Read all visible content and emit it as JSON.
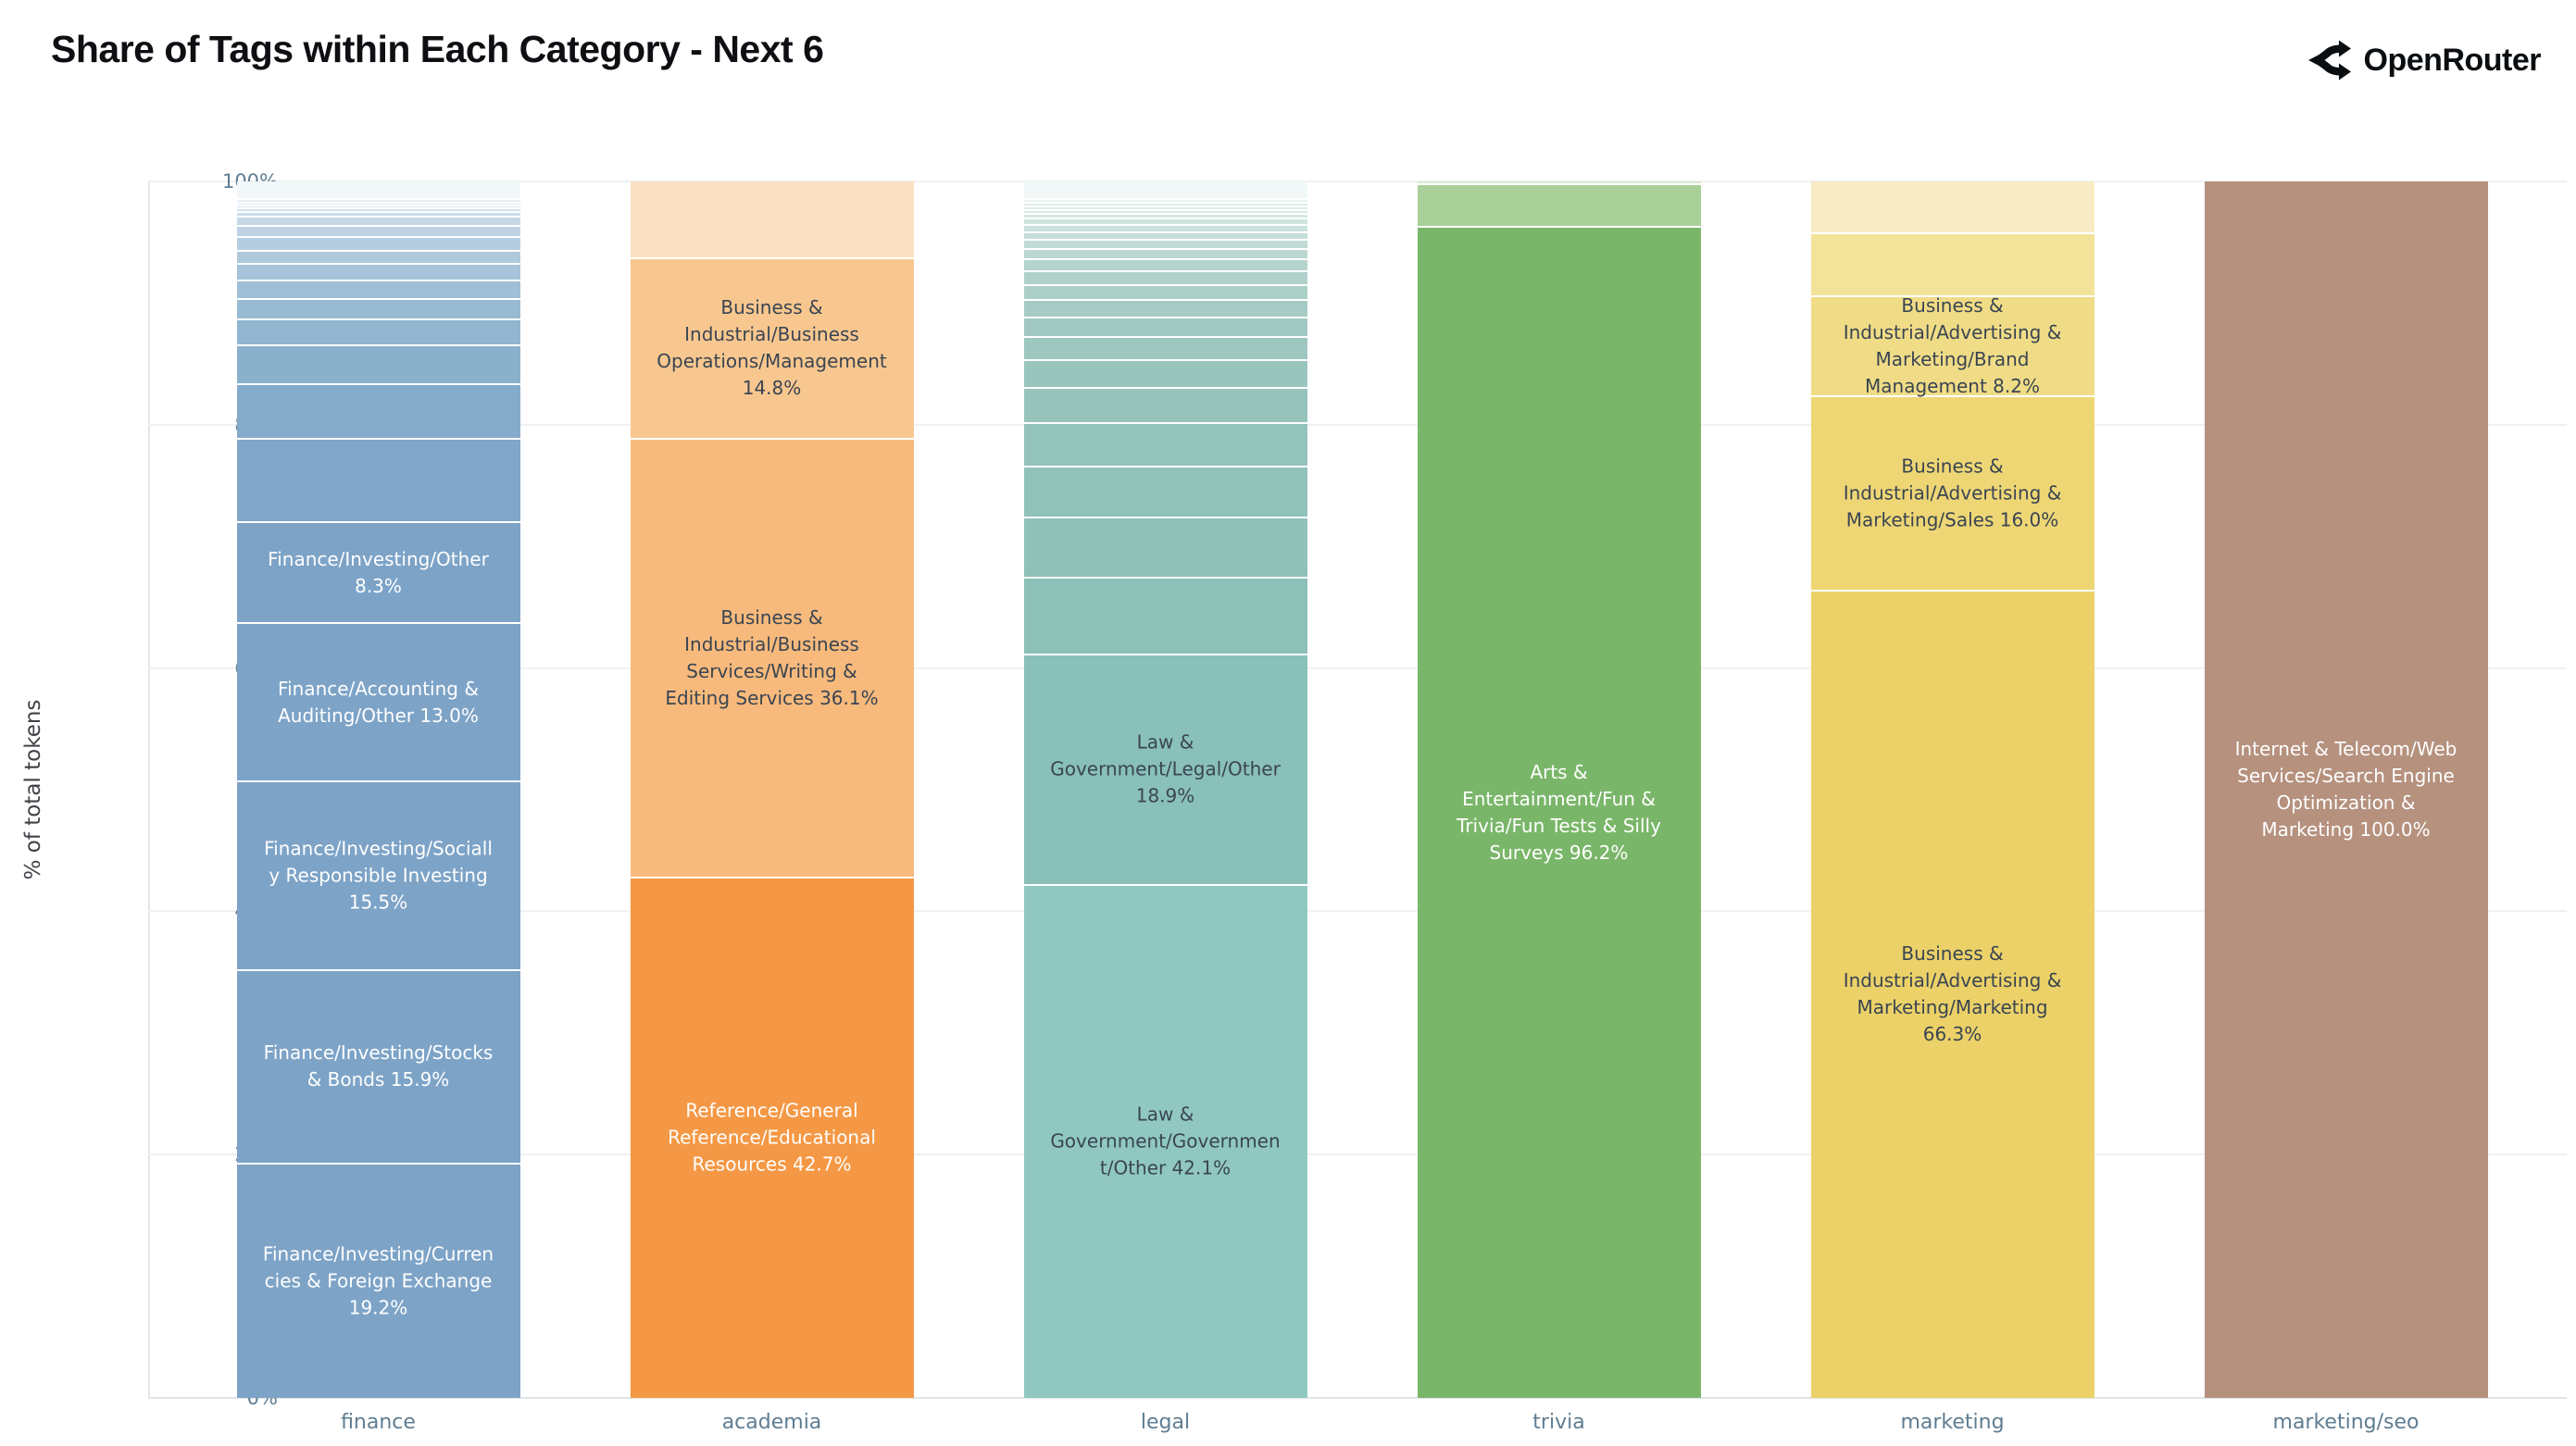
{
  "header": {
    "title": "Share of Tags within Each Category - Next 6",
    "brand": "OpenRouter"
  },
  "colors": {
    "label_dark": "#3a4552",
    "label_light": "#ffffff",
    "tick_text": "#5f7d92",
    "gridline": "#f0f1f4",
    "background": "#ffffff"
  },
  "chart_data": {
    "type": "bar",
    "stacked": true,
    "orientation": "vertical",
    "title": "Share of Tags within Each Category - Next 6",
    "xlabel": "",
    "ylabel": "% of total tokens",
    "ylim": [
      0,
      100
    ],
    "yticks": [
      "0%",
      "20%",
      "40%",
      "60%",
      "80%",
      "100%"
    ],
    "grid": "horizontal",
    "legend": "none",
    "categories": [
      "finance",
      "academia",
      "legal",
      "trivia",
      "marketing",
      "marketing/seo"
    ],
    "segments_order": "top-to-bottom; value = percent of total tokens; label null = unlabeled small tag slice (estimated from pixels)",
    "bars": {
      "finance": {
        "segments": [
          {
            "label": null,
            "value": 1.5,
            "color": "#f2f7fa"
          },
          {
            "label": null,
            "value": 0.3,
            "color": "#e6eef5"
          },
          {
            "label": null,
            "value": 0.25,
            "color": "#e0e9f2"
          },
          {
            "label": null,
            "value": 0.25,
            "color": "#dae5ef"
          },
          {
            "label": null,
            "value": 0.3,
            "color": "#d4e1ec"
          },
          {
            "label": null,
            "value": 0.4,
            "color": "#cddce9"
          },
          {
            "label": null,
            "value": 0.75,
            "color": "#c6d7e6"
          },
          {
            "label": null,
            "value": 0.9,
            "color": "#bed2e3"
          },
          {
            "label": null,
            "value": 1.1,
            "color": "#b6cde0"
          },
          {
            "label": null,
            "value": 1.1,
            "color": "#aec8dc"
          },
          {
            "label": null,
            "value": 1.4,
            "color": "#a7c3d9"
          },
          {
            "label": null,
            "value": 1.5,
            "color": "#a0bfd6"
          },
          {
            "label": null,
            "value": 1.7,
            "color": "#99bad3"
          },
          {
            "label": null,
            "value": 2.1,
            "color": "#92b5d0"
          },
          {
            "label": null,
            "value": 3.2,
            "color": "#8bb0cc"
          },
          {
            "label": null,
            "value": 4.5,
            "color": "#85abca"
          },
          {
            "label": null,
            "value": 6.85,
            "color": "#80a7c8"
          },
          {
            "label": "Finance/Investing/Other 8.3%",
            "value": 8.3,
            "color": "#7da3c7",
            "text": "light"
          },
          {
            "label": "Finance/Accounting & Auditing/Other 13.0%",
            "value": 13.0,
            "color": "#7da3c7",
            "text": "light"
          },
          {
            "label": "Finance/Investing/Socially Responsible Investing 15.5%",
            "value": 15.5,
            "color": "#7da3c7",
            "text": "light"
          },
          {
            "label": "Finance/Investing/Stocks & Bonds 15.9%",
            "value": 15.9,
            "color": "#7da3c7",
            "text": "light"
          },
          {
            "label": "Finance/Investing/Currencies & Foreign Exchange 19.2%",
            "value": 19.2,
            "color": "#7da3c7",
            "text": "light"
          }
        ]
      },
      "academia": {
        "segments": [
          {
            "label": null,
            "value": 6.4,
            "color": "#fbe1c3"
          },
          {
            "label": "Business & Industrial/Business Operations/Management 14.8%",
            "value": 14.8,
            "color": "#f8c78f",
            "text": "dark"
          },
          {
            "label": "Business & Industrial/Business Services/Writing & Editing Services 36.1%",
            "value": 36.1,
            "color": "#f7ba7c",
            "text": "dark"
          },
          {
            "label": "Reference/General Reference/Educational Resources 42.7%",
            "value": 42.7,
            "color": "#f49845",
            "text": "light"
          }
        ]
      },
      "legal": {
        "segments": [
          {
            "label": null,
            "value": 1.5,
            "color": "#f1f8f7"
          },
          {
            "label": null,
            "value": 0.3,
            "color": "#e9f3f1"
          },
          {
            "label": null,
            "value": 0.3,
            "color": "#e4f0ee"
          },
          {
            "label": null,
            "value": 0.3,
            "color": "#dfedeb"
          },
          {
            "label": null,
            "value": 0.35,
            "color": "#daeae7"
          },
          {
            "label": null,
            "value": 0.4,
            "color": "#d5e7e4"
          },
          {
            "label": null,
            "value": 0.5,
            "color": "#d0e4e0"
          },
          {
            "label": null,
            "value": 0.6,
            "color": "#cae1dd"
          },
          {
            "label": null,
            "value": 0.65,
            "color": "#c5ded9"
          },
          {
            "label": null,
            "value": 0.75,
            "color": "#c0dbd5"
          },
          {
            "label": null,
            "value": 0.85,
            "color": "#bad7d2"
          },
          {
            "label": null,
            "value": 1.0,
            "color": "#b5d4ce"
          },
          {
            "label": null,
            "value": 1.1,
            "color": "#b0d1cb"
          },
          {
            "label": null,
            "value": 1.25,
            "color": "#abcec7"
          },
          {
            "label": null,
            "value": 1.4,
            "color": "#a6cbc4"
          },
          {
            "label": null,
            "value": 1.6,
            "color": "#a1c9c1"
          },
          {
            "label": null,
            "value": 1.9,
            "color": "#9dc7bf"
          },
          {
            "label": null,
            "value": 2.3,
            "color": "#99c5bd"
          },
          {
            "label": null,
            "value": 2.9,
            "color": "#96c4bb"
          },
          {
            "label": null,
            "value": 3.6,
            "color": "#93c3ba"
          },
          {
            "label": null,
            "value": 4.2,
            "color": "#91c2b9"
          },
          {
            "label": null,
            "value": 4.9,
            "color": "#8fc1b8"
          },
          {
            "label": null,
            "value": 6.35,
            "color": "#8dc0b7"
          },
          {
            "label": "Law & Government/Legal/Other 18.9%",
            "value": 18.9,
            "color": "#89c0b9",
            "text": "dark"
          },
          {
            "label": "Law & Government/Government/Other 42.1%",
            "value": 42.1,
            "color": "#90c8c1",
            "text": "dark"
          }
        ]
      },
      "trivia": {
        "segments": [
          {
            "label": null,
            "value": 0.3,
            "color": "#dcebd3"
          },
          {
            "label": null,
            "value": 3.5,
            "color": "#a9d098"
          },
          {
            "label": "Arts & Entertainment/Fun & Trivia/Fun Tests & Silly Surveys 96.2%",
            "value": 96.2,
            "color": "#7ab669",
            "text": "light"
          }
        ]
      },
      "marketing": {
        "segments": [
          {
            "label": null,
            "value": 4.3,
            "color": "#f7ecc4"
          },
          {
            "label": null,
            "value": 5.2,
            "color": "#f3e29a"
          },
          {
            "label": "Business & Industrial/Advertising & Marketing/Brand Management 8.2%",
            "value": 8.2,
            "color": "#f0dc86",
            "text": "dark"
          },
          {
            "label": "Business & Industrial/Advertising & Marketing/Sales 16.0%",
            "value": 16.0,
            "color": "#eed675",
            "text": "dark"
          },
          {
            "label": "Business & Industrial/Advertising & Marketing/Marketing 66.3%",
            "value": 66.3,
            "color": "#ebd168",
            "text": "dark"
          }
        ]
      },
      "marketing/seo": {
        "segments": [
          {
            "label": "Internet & Telecom/Web Services/Search Engine Optimization & Marketing 100.0%",
            "value": 100.0,
            "color": "#b5917e",
            "text": "light"
          }
        ]
      }
    }
  }
}
